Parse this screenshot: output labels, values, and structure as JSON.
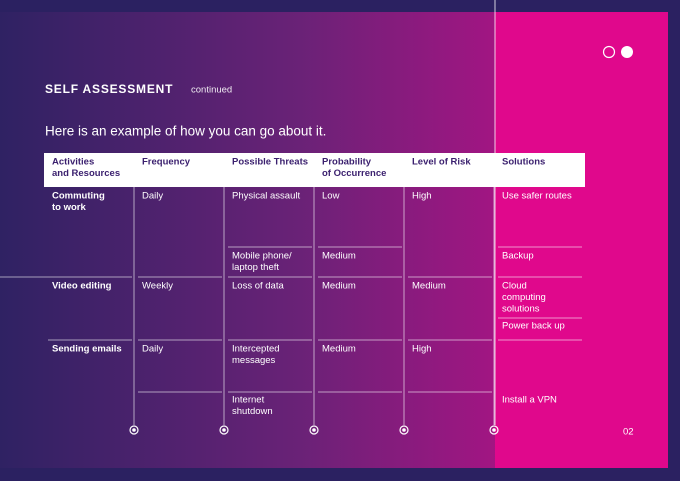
{
  "header": {
    "title": "SELF ASSESSMENT",
    "tag": "continued",
    "subtitle": "Here is an example of how you can go about it."
  },
  "table": {
    "columns": [
      [
        "Activities",
        "and Resources"
      ],
      [
        "Frequency"
      ],
      [
        "Possible Threats"
      ],
      [
        "Probability",
        "of Occurrence"
      ],
      [
        "Level of Risk"
      ],
      [
        "Solutions"
      ]
    ],
    "rows": [
      [
        [
          "Commuting",
          "to work"
        ],
        [
          "Daily"
        ],
        [
          "Physical assault"
        ],
        [
          "Low"
        ],
        [
          "High"
        ],
        [
          "Use safer routes"
        ]
      ],
      [
        null,
        null,
        [
          "Mobile phone/",
          "laptop theft"
        ],
        [
          "Medium"
        ],
        null,
        [
          "Backup"
        ]
      ],
      [
        [
          "Video editing"
        ],
        [
          "Weekly"
        ],
        [
          "Loss of data"
        ],
        [
          "Medium"
        ],
        [
          "Medium"
        ],
        [
          "Cloud",
          "computing",
          "solutions"
        ]
      ],
      [
        null,
        null,
        null,
        null,
        null,
        [
          "Power back up"
        ]
      ],
      [
        [
          "Sending emails"
        ],
        [
          "Daily"
        ],
        [
          "Intercepted",
          "messages"
        ],
        [
          "Medium"
        ],
        [
          "High"
        ],
        null
      ],
      [
        null,
        null,
        [
          "Internet",
          "shutdown"
        ],
        null,
        null,
        [
          "Install a VPN"
        ]
      ]
    ]
  },
  "footer": {
    "page": "02"
  }
}
